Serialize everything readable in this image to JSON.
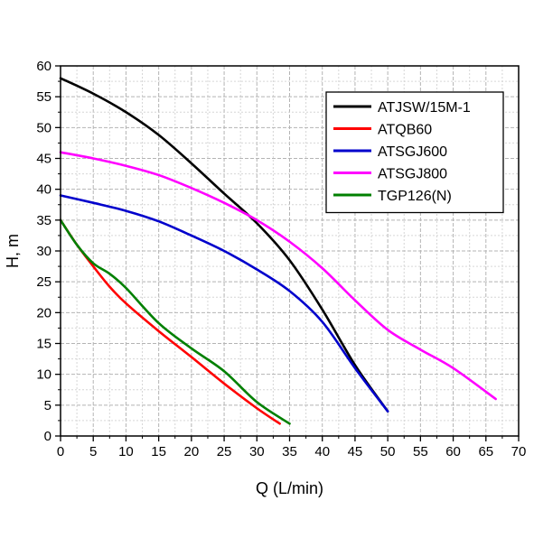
{
  "chart_data": {
    "type": "line",
    "title": "",
    "xlabel": "Q (L/min)",
    "ylabel": "H, m",
    "xlim": [
      0,
      70
    ],
    "ylim": [
      0,
      60
    ],
    "xticks": [
      0,
      5,
      10,
      15,
      20,
      25,
      30,
      35,
      40,
      45,
      50,
      55,
      60,
      65,
      70
    ],
    "yticks": [
      0,
      5,
      10,
      15,
      20,
      25,
      30,
      35,
      40,
      45,
      50,
      55,
      60
    ],
    "x_minor_step": 2.5,
    "y_minor_step": 2.5,
    "grid": true,
    "legend_position": "top-right",
    "series": [
      {
        "name": "ATJSW/15M-1",
        "color": "#000000",
        "points": [
          [
            0,
            58
          ],
          [
            5,
            55.5
          ],
          [
            10,
            52.5
          ],
          [
            15,
            48.8
          ],
          [
            20,
            44.2
          ],
          [
            25,
            39.3
          ],
          [
            30,
            34.5
          ],
          [
            35,
            28.5
          ],
          [
            40,
            20.5
          ],
          [
            45,
            11.5
          ],
          [
            50,
            4
          ]
        ]
      },
      {
        "name": "ATQB60",
        "color": "#ff0000",
        "points": [
          [
            0,
            35
          ],
          [
            2.5,
            31
          ],
          [
            5,
            27.5
          ],
          [
            7.5,
            24.2
          ],
          [
            10,
            21.5
          ],
          [
            15,
            17
          ],
          [
            20,
            12.8
          ],
          [
            25,
            8.5
          ],
          [
            30,
            4.5
          ],
          [
            33.5,
            2
          ]
        ]
      },
      {
        "name": "ATSGJ600",
        "color": "#0000cc",
        "points": [
          [
            0,
            39
          ],
          [
            5,
            37.8
          ],
          [
            10,
            36.5
          ],
          [
            15,
            34.8
          ],
          [
            20,
            32.5
          ],
          [
            25,
            30
          ],
          [
            30,
            27
          ],
          [
            35,
            23.5
          ],
          [
            40,
            18.5
          ],
          [
            45,
            11
          ],
          [
            50,
            4
          ]
        ]
      },
      {
        "name": "ATSGJ800",
        "color": "#ff00ff",
        "points": [
          [
            0,
            46
          ],
          [
            5,
            45
          ],
          [
            10,
            43.8
          ],
          [
            15,
            42.3
          ],
          [
            20,
            40.2
          ],
          [
            25,
            37.8
          ],
          [
            30,
            35
          ],
          [
            35,
            31.5
          ],
          [
            40,
            27.2
          ],
          [
            45,
            22
          ],
          [
            50,
            17.2
          ],
          [
            55,
            14
          ],
          [
            60,
            11
          ],
          [
            66.5,
            6
          ]
        ]
      },
      {
        "name": "TGP126(N)",
        "color": "#008000",
        "points": [
          [
            0,
            35
          ],
          [
            2.5,
            31
          ],
          [
            5,
            28
          ],
          [
            7.5,
            26.3
          ],
          [
            10,
            24
          ],
          [
            15,
            18.3
          ],
          [
            20,
            14.2
          ],
          [
            25,
            10.5
          ],
          [
            30,
            5.5
          ],
          [
            35,
            2
          ]
        ]
      }
    ]
  }
}
